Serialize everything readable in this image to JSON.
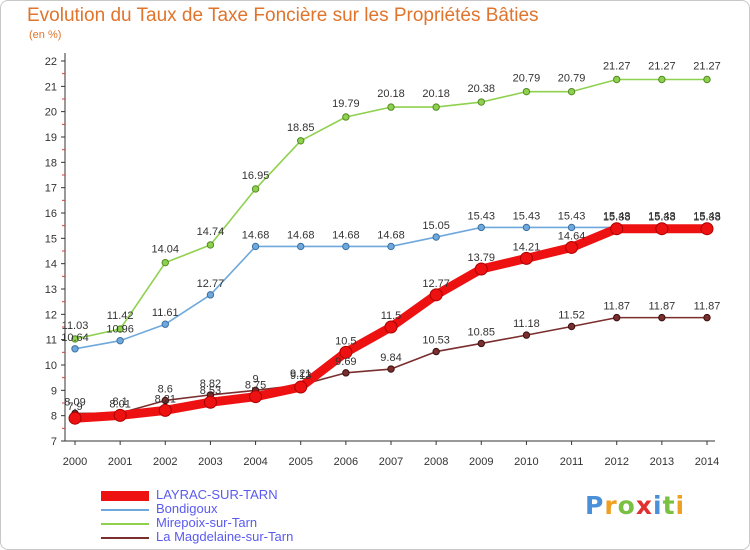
{
  "chart_data": {
    "type": "line",
    "title": "Evolution du Taux de Taxe Foncière sur les Propriétés Bâties",
    "subtitle": "(en %)",
    "x": [
      "2000",
      "2001",
      "2002",
      "2003",
      "2004",
      "2005",
      "2006",
      "2007",
      "2008",
      "2009",
      "2010",
      "2011",
      "2012",
      "2013",
      "2014"
    ],
    "ylim": [
      7,
      22
    ],
    "yticks": [
      "7",
      "8",
      "9",
      "10",
      "11",
      "12",
      "13",
      "14",
      "15",
      "16",
      "17",
      "18",
      "19",
      "20",
      "21",
      "22"
    ],
    "grid": false,
    "legend_position": "bottom-left",
    "series": [
      {
        "name": "LAYRAC-SUR-TARN",
        "color": "#ee1111",
        "values": [
          7.9,
          8.01,
          8.21,
          8.53,
          8.75,
          9.13,
          10.5,
          11.5,
          12.77,
          13.79,
          14.21,
          14.64,
          15.38,
          15.38,
          15.38
        ],
        "labels": [
          "7.9",
          "8.01",
          "8.21",
          "8.53",
          "8.75",
          "9.13",
          "10.5",
          "11.5",
          "12.77",
          "13.79",
          "14.21",
          "14.64",
          "15.38",
          "15.38",
          "15.38"
        ]
      },
      {
        "name": "Bondigoux",
        "color": "#6fa8dc",
        "values": [
          10.64,
          10.96,
          11.61,
          12.77,
          14.68,
          14.68,
          14.68,
          14.68,
          15.05,
          15.43,
          15.43,
          15.43,
          15.43,
          15.43,
          15.43
        ],
        "labels": [
          "10.64",
          "10.96",
          "11.61",
          "12.77",
          "14.68",
          "14.68",
          "14.68",
          "14.68",
          "15.05",
          "15.43",
          "15.43",
          "15.43",
          "15.43",
          "15.43",
          "15.43"
        ]
      },
      {
        "name": "Mirepoix-sur-Tarn",
        "color": "#8fd14f",
        "values": [
          11.03,
          11.42,
          14.04,
          14.74,
          16.95,
          18.85,
          19.79,
          20.18,
          20.18,
          20.38,
          20.79,
          20.79,
          21.27,
          21.27,
          21.27
        ],
        "labels": [
          "11.03",
          "11.42",
          "14.04",
          "14.74",
          "16.95",
          "18.85",
          "19.79",
          "20.18",
          "20.18",
          "20.38",
          "20.79",
          "20.79",
          "21.27",
          "21.27",
          "21.27"
        ]
      },
      {
        "name": "La Magdelaine-sur-Tarn",
        "color": "#7a2e2e",
        "values": [
          8.09,
          8.1,
          8.6,
          8.82,
          9,
          9.21,
          9.69,
          9.84,
          10.53,
          10.85,
          11.18,
          11.52,
          11.87,
          11.87,
          11.87
        ],
        "labels": [
          "8.09",
          "8.1",
          "8.6",
          "8.82",
          "9",
          "9.21",
          "9.69",
          "9.84",
          "10.53",
          "10.85",
          "11.18",
          "11.52",
          "11.87",
          "11.87",
          "11.87"
        ]
      }
    ]
  },
  "brand": {
    "logo_letters": [
      "P",
      "r",
      "o",
      "x",
      "i",
      "t",
      "i"
    ],
    "logo_colors": [
      "#4a90d9",
      "#f0a020",
      "#7ac043",
      "#e03030",
      "#4a90d9",
      "#7ac043",
      "#f0a020"
    ]
  },
  "colors": {
    "title": "#e0742c",
    "legend_text": "#5a5af0",
    "axis": "#333333"
  }
}
